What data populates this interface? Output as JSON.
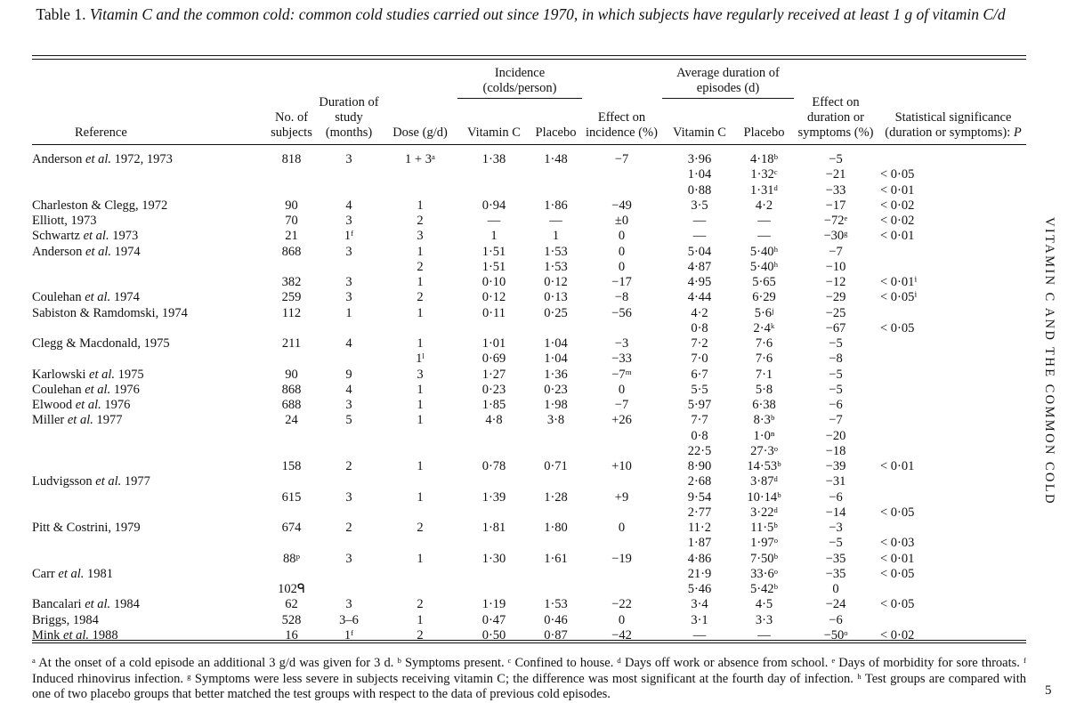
{
  "caption": {
    "label": "Table 1.",
    "text": "Vitamin C and the common cold: common cold studies carried out since 1970, in which subjects have regularly received at least 1 g of vitamin C/d"
  },
  "headers": {
    "reference": "Reference",
    "subjects": "No. of subjects",
    "duration": "Duration of study (months)",
    "dose": "Dose (g/d)",
    "incidence_group": "Incidence (colds/person)",
    "vitc": "Vitamin C",
    "placebo": "Placebo",
    "effect_incidence": "Effect on incidence (%)",
    "avg_duration_group": "Average duration of episodes (d)",
    "effect_duration": "Effect on duration or symptoms (%)",
    "significance": "Statistical significance (duration or symptoms): P"
  },
  "rows": [
    [
      "Anderson et al. 1972, 1973",
      "818",
      "3",
      "1 + 3ᵃ",
      "1·38",
      "1·48",
      "−7",
      "3·96",
      "4·18ᵇ",
      "−5",
      ""
    ],
    [
      "",
      "",
      "",
      "",
      "",
      "",
      "",
      "1·04",
      "1·32ᶜ",
      "−21",
      "< 0·05"
    ],
    [
      "",
      "",
      "",
      "",
      "",
      "",
      "",
      "0·88",
      "1·31ᵈ",
      "−33",
      "< 0·01"
    ],
    [
      "Charleston & Clegg, 1972",
      "90",
      "4",
      "1",
      "0·94",
      "1·86",
      "−49",
      "3·5",
      "4·2",
      "−17",
      "< 0·02"
    ],
    [
      "Elliott, 1973",
      "70",
      "3",
      "2",
      "—",
      "—",
      "±0",
      "—",
      "—",
      "−72ᵉ",
      "< 0·02"
    ],
    [
      "Schwartz et al. 1973",
      "21",
      "1ᶠ",
      "3",
      "1",
      "1",
      "0",
      "—",
      "—",
      "−30ᵍ",
      "< 0·01"
    ],
    [
      "Anderson et al. 1974",
      "868",
      "3",
      "1",
      "1·51",
      "1·53",
      "0",
      "5·04",
      "5·40ʰ",
      "−7",
      ""
    ],
    [
      "",
      "",
      "",
      "2",
      "1·51",
      "1·53",
      "0",
      "4·87",
      "5·40ʰ",
      "−10",
      ""
    ],
    [
      "",
      "382",
      "3",
      "1",
      "0·10",
      "0·12",
      "−17",
      "4·95",
      "5·65",
      "−12",
      "< 0·01ⁱ"
    ],
    [
      "Coulehan et al. 1974",
      "259",
      "3",
      "2",
      "0·12",
      "0·13",
      "−8",
      "4·44",
      "6·29",
      "−29",
      "< 0·05ⁱ"
    ],
    [
      "Sabiston & Ramdomski, 1974",
      "112",
      "1",
      "1",
      "0·11",
      "0·25",
      "−56",
      "4·2",
      "5·6ʲ",
      "−25",
      ""
    ],
    [
      "",
      "",
      "",
      "",
      "",
      "",
      "",
      "0·8",
      "2·4ᵏ",
      "−67",
      "< 0·05"
    ],
    [
      "Clegg & Macdonald, 1975",
      "211",
      "4",
      "1",
      "1·01",
      "1·04",
      "−3",
      "7·2",
      "7·6",
      "−5",
      ""
    ],
    [
      "",
      "",
      "",
      "1ˡ",
      "0·69",
      "1·04",
      "−33",
      "7·0",
      "7·6",
      "−8",
      ""
    ],
    [
      "Karlowski et al. 1975",
      "90",
      "9",
      "3",
      "1·27",
      "1·36",
      "−7ᵐ",
      "6·7",
      "7·1",
      "−5",
      ""
    ],
    [
      "Coulehan et al. 1976",
      "868",
      "4",
      "1",
      "0·23",
      "0·23",
      "0",
      "5·5",
      "5·8",
      "−5",
      ""
    ],
    [
      "Elwood et al. 1976",
      "688",
      "3",
      "1",
      "1·85",
      "1·98",
      "−7",
      "5·97",
      "6·38",
      "−6",
      ""
    ],
    [
      "Miller et al. 1977",
      "24",
      "5",
      "1",
      "4·8",
      "3·8",
      "+26",
      "7·7",
      "8·3ᵇ",
      "−7",
      ""
    ],
    [
      "",
      "",
      "",
      "",
      "",
      "",
      "",
      "0·8",
      "1·0ⁿ",
      "−20",
      ""
    ],
    [
      "",
      "",
      "",
      "",
      "",
      "",
      "",
      "22·5",
      "27·3ᵒ",
      "−18",
      ""
    ],
    [
      "",
      "158",
      "2",
      "1",
      "0·78",
      "0·71",
      "+10",
      "8·90",
      "14·53ᵇ",
      "−39",
      "< 0·01"
    ],
    [
      "Ludvigsson et al. 1977",
      "",
      "",
      "",
      "",
      "",
      "",
      "2·68",
      "3·87ᵈ",
      "−31",
      ""
    ],
    [
      "",
      "615",
      "3",
      "1",
      "1·39",
      "1·28",
      "+9",
      "9·54",
      "10·14ᵇ",
      "−6",
      ""
    ],
    [
      "",
      "",
      "",
      "",
      "",
      "",
      "",
      "2·77",
      "3·22ᵈ",
      "−14",
      "< 0·05"
    ],
    [
      "Pitt & Costrini, 1979",
      "674",
      "2",
      "2",
      "1·81",
      "1·80",
      "0",
      "11·2",
      "11·5ᵇ",
      "−3",
      ""
    ],
    [
      "",
      "",
      "",
      "",
      "",
      "",
      "",
      "1·87",
      "1·97ᵒ",
      "−5",
      "< 0·03"
    ],
    [
      "",
      "88ᵖ",
      "3",
      "1",
      "1·30",
      "1·61",
      "−19",
      "4·86",
      "7·50ᵇ",
      "−35",
      "< 0·01"
    ],
    [
      "Carr et al. 1981",
      "",
      "",
      "",
      "",
      "",
      "",
      "21·9",
      "33·6ᵒ",
      "−35",
      "< 0·05"
    ],
    [
      "",
      "102ᑫ",
      "",
      "",
      "",
      "",
      "",
      "5·46",
      "5·42ᵇ",
      "0",
      ""
    ],
    [
      "Bancalari et al. 1984",
      "62",
      "3",
      "2",
      "1·19",
      "1·53",
      "−22",
      "3·4",
      "4·5",
      "−24",
      "< 0·05"
    ],
    [
      "Briggs, 1984",
      "528",
      "3–6",
      "1",
      "0·47",
      "0·46",
      "0",
      "3·1",
      "3·3",
      "−6",
      ""
    ],
    [
      "Mink et al. 1988",
      "16",
      "1ᶠ",
      "2",
      "0·50",
      "0·87",
      "−42",
      "—",
      "—",
      "−50ᵒ",
      "< 0·02"
    ]
  ],
  "footnotes": "ᵃ At the onset of a cold episode an additional 3 g/d was given for 3 d. ᵇ Symptoms present. ᶜ Confined to house. ᵈ Days off work or absence from school. ᵉ Days of morbidity for sore throats. ᶠ Induced rhinovirus infection. ᵍ Symptoms were less severe in subjects receiving vitamin C; the difference was most significant at the fourth day of infection. ʰ Test groups are compared with one of two placebo groups that better matched the test groups with respect to the data of previous cold episodes.",
  "side_title": "VITAMIN C AND THE COMMON COLD",
  "page_number": "5"
}
